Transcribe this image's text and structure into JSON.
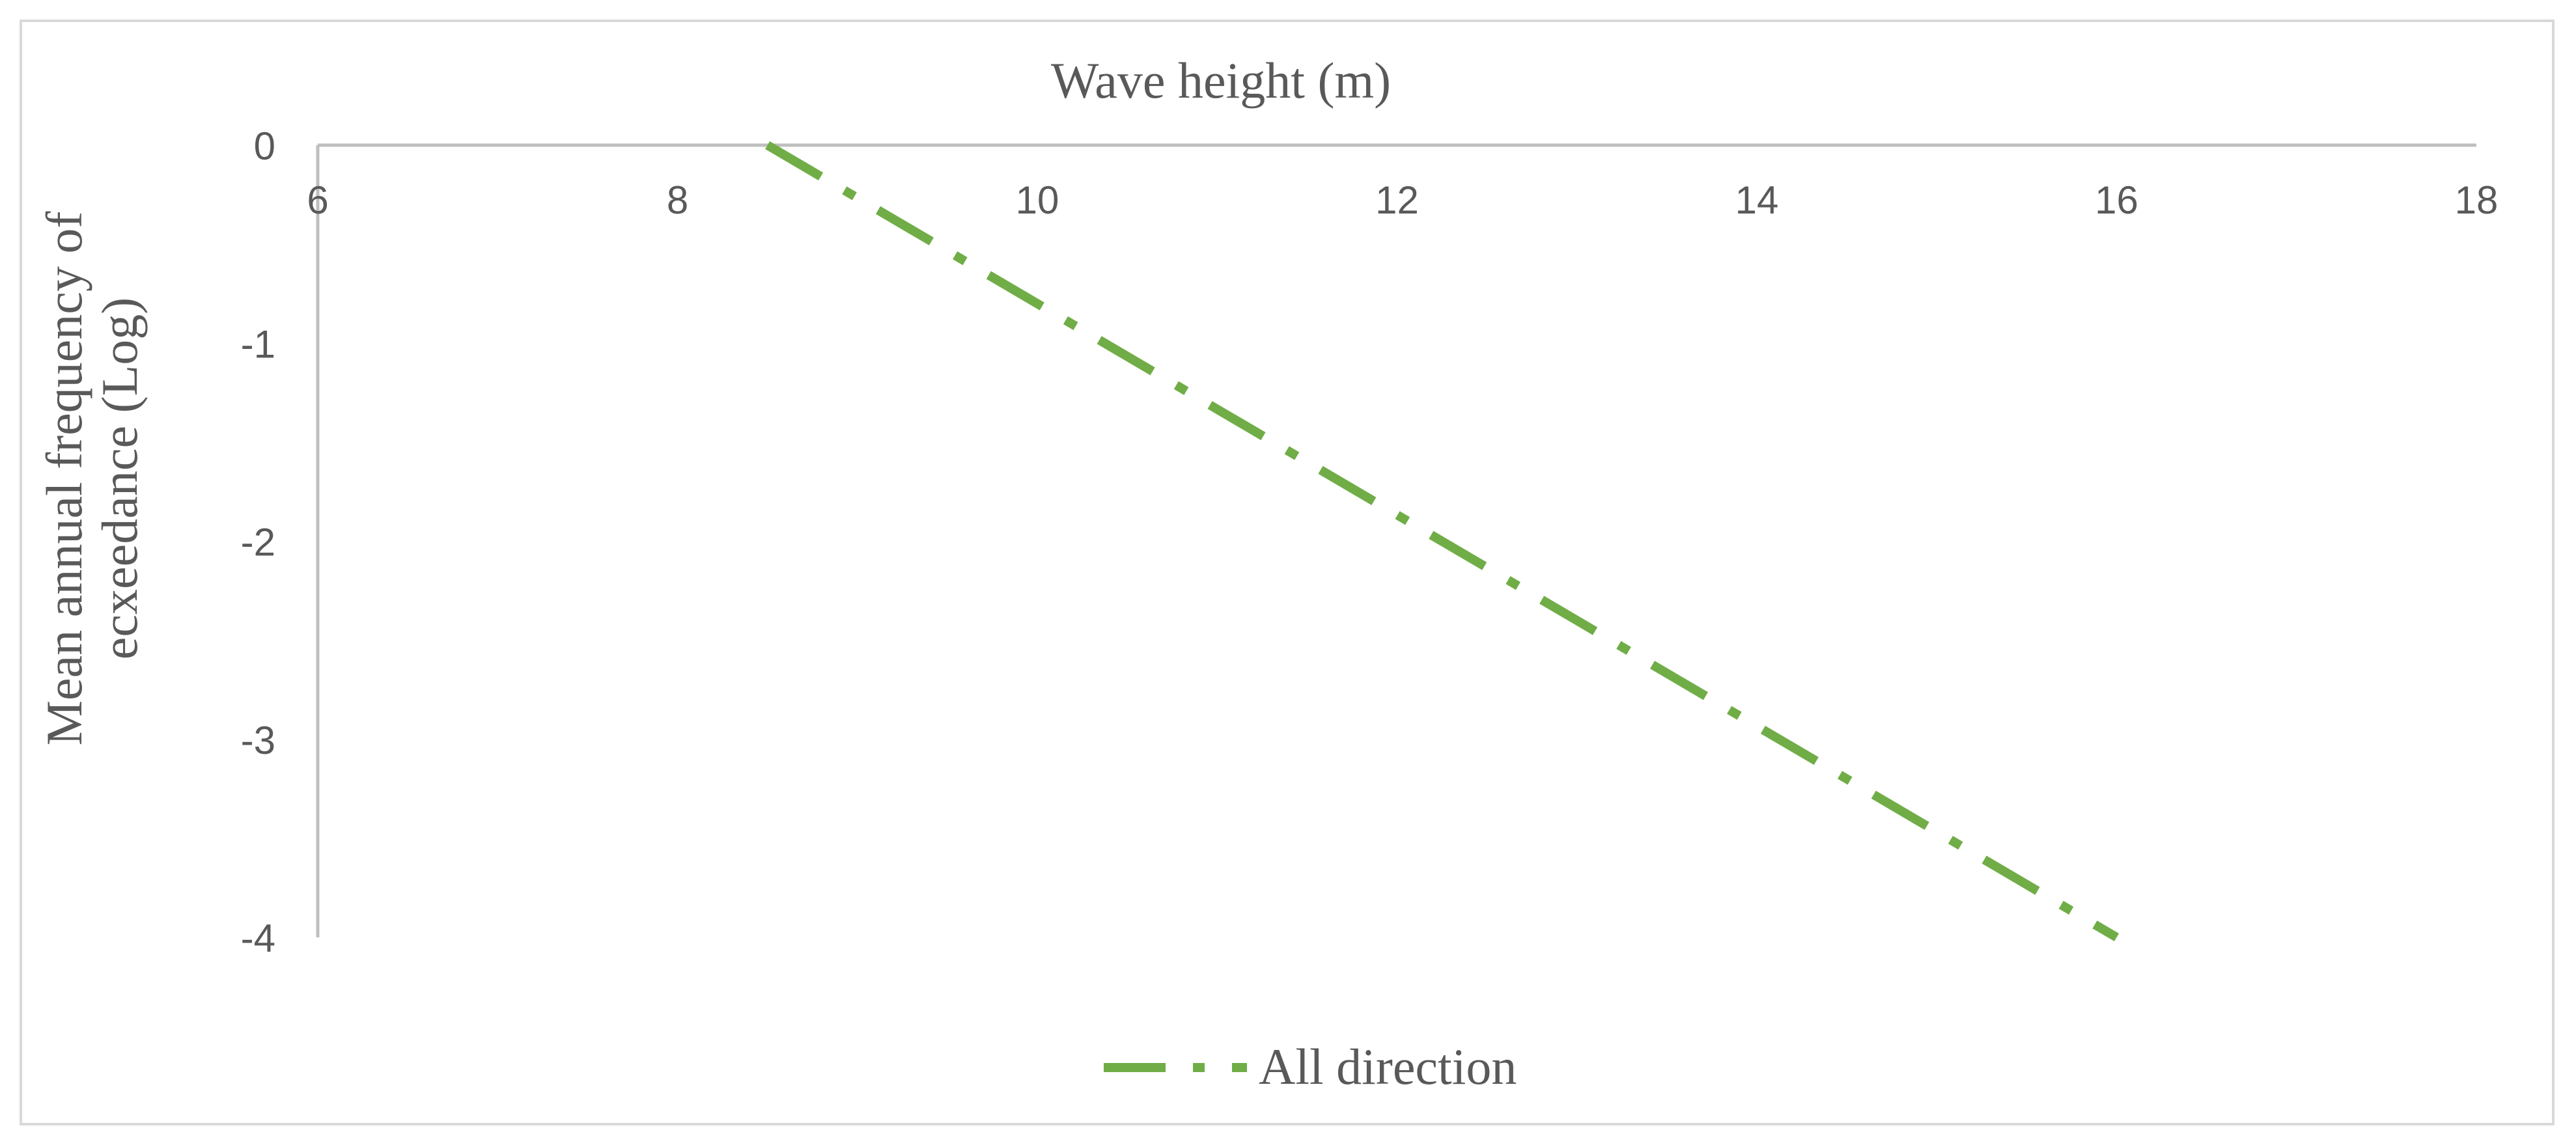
{
  "chart_data": {
    "type": "line",
    "title": "",
    "xlabel": "Wave height (m)",
    "ylabel_lines": [
      "Mean annual frequency of",
      "ecxeedance (Log)"
    ],
    "xlim": [
      6,
      18
    ],
    "ylim": [
      -4,
      0
    ],
    "x_ticks": [
      6,
      8,
      10,
      12,
      14,
      16,
      18
    ],
    "y_ticks": [
      0,
      -1,
      -2,
      -3,
      -4
    ],
    "x_axis_position": "top",
    "grid": false,
    "legend_position": "bottom",
    "series": [
      {
        "name": "All direction",
        "color": "#70ad47",
        "line_style": "dash-dot",
        "x": [
          8.5,
          16.0
        ],
        "y": [
          0,
          -4
        ]
      }
    ]
  }
}
